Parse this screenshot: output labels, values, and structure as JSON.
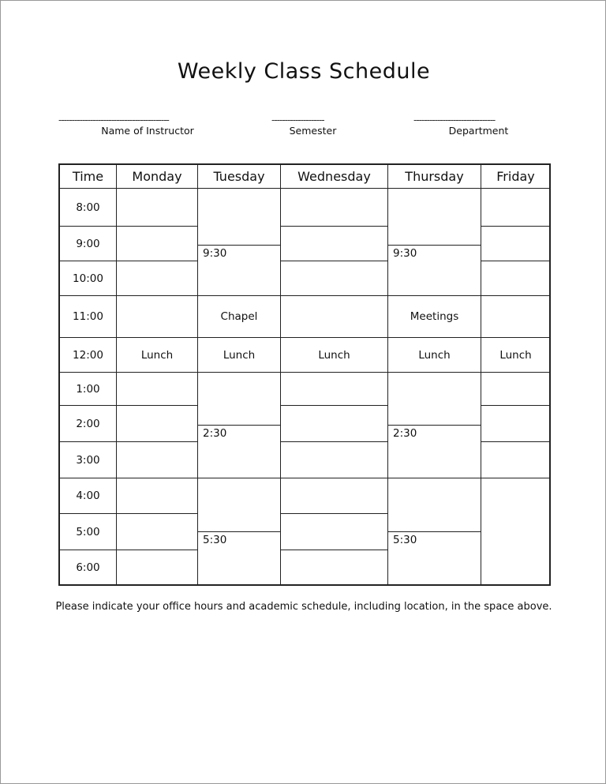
{
  "title": "Weekly Class Schedule",
  "fields": [
    {
      "label": "Name of Instructor",
      "value": ""
    },
    {
      "label": "Semester",
      "value": ""
    },
    {
      "label": "Department",
      "value": ""
    }
  ],
  "table": {
    "headers": [
      "Time",
      "Monday",
      "Tuesday",
      "Wednesday",
      "Thursday",
      "Friday"
    ],
    "times": [
      "8:00",
      "9:00",
      "10:00",
      "11:00",
      "12:00",
      "1:00",
      "2:00",
      "3:00",
      "4:00",
      "5:00",
      "6:00"
    ],
    "lunch": "Lunch",
    "tuesday_blocks": [
      "",
      "9:30",
      "Chapel",
      "Lunch",
      "",
      "2:30",
      "",
      "5:30"
    ],
    "thursday_blocks": [
      "",
      "9:30",
      "Meetings",
      "Lunch",
      "",
      "2:30",
      "",
      "5:30"
    ]
  },
  "footer": "Please indicate your office hours and academic schedule, including location, in the space above."
}
